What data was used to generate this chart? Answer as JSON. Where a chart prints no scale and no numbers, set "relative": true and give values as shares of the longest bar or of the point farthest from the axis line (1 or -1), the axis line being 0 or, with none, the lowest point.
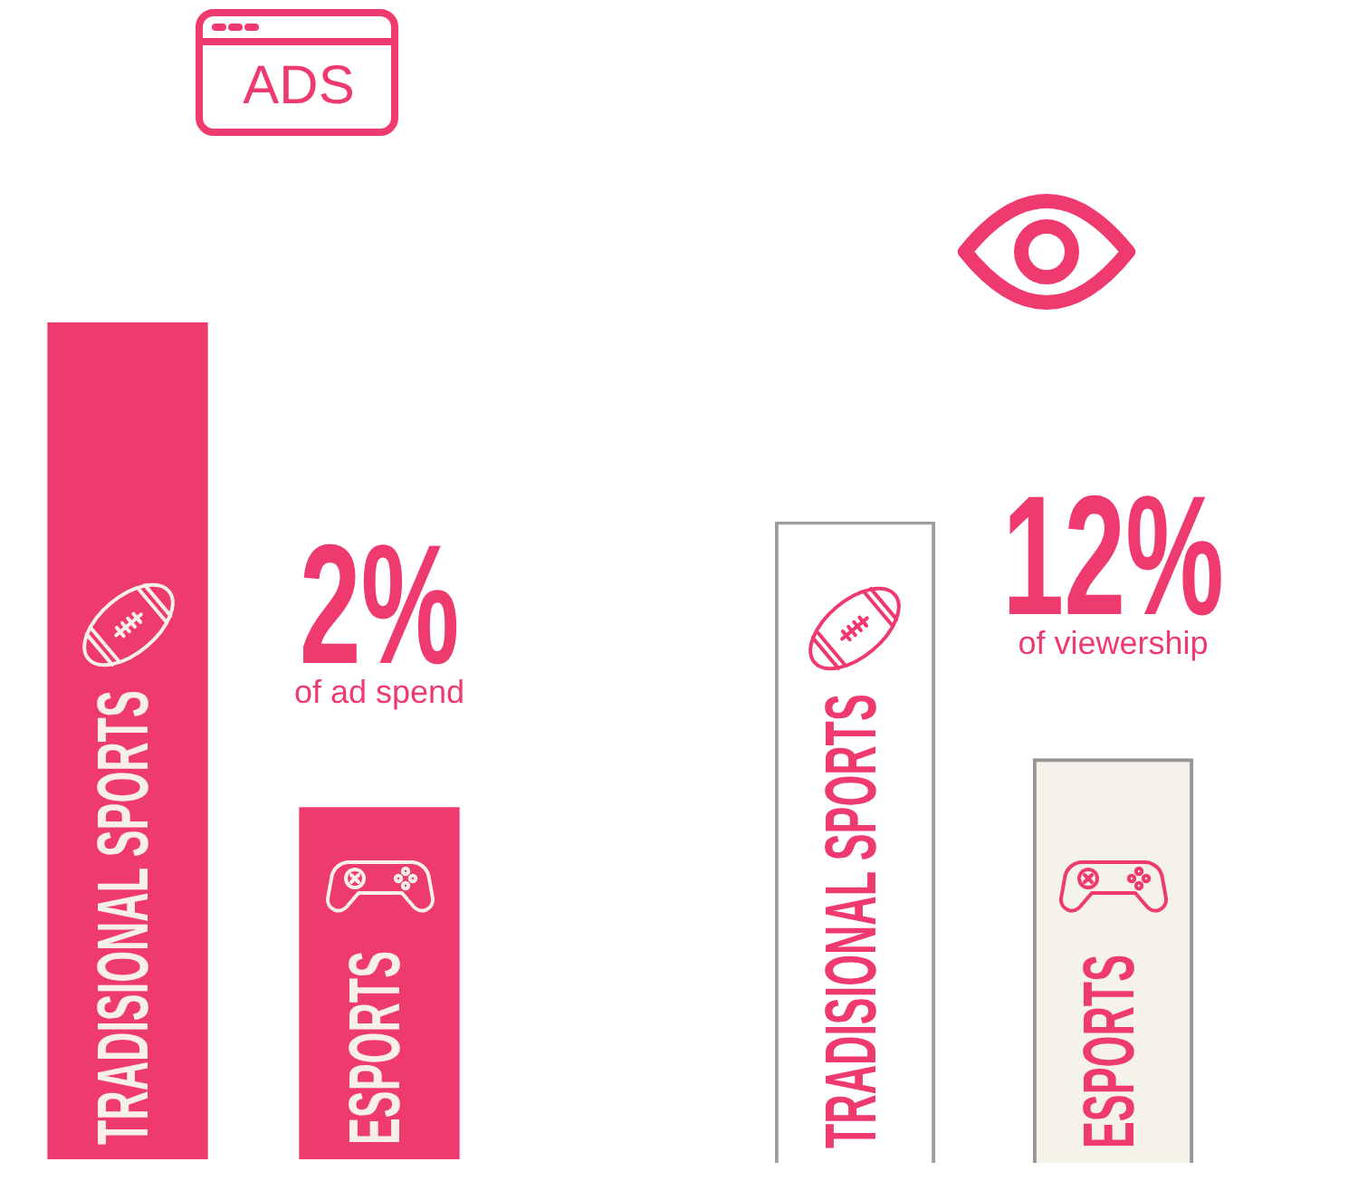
{
  "chart_data": [
    {
      "type": "bar",
      "title": "ADS",
      "categories": [
        "TRADISIONAL SPORTS",
        "ESPORTS"
      ],
      "values": [
        1,
        0.42
      ],
      "colors": [
        "#ef3a6f",
        "#ef3a6f"
      ],
      "relative": true,
      "annotations": [
        "2%",
        "of ad spend"
      ]
    },
    {
      "type": "bar",
      "categories": [
        "TRADISIONAL SPORTS",
        "ESPORTS"
      ],
      "values": [
        1,
        0.63
      ],
      "colors": [
        "#ffffff",
        "#f5f1eb"
      ],
      "relative": true,
      "annotations": [
        "12%",
        "of viewership"
      ]
    }
  ]
}
